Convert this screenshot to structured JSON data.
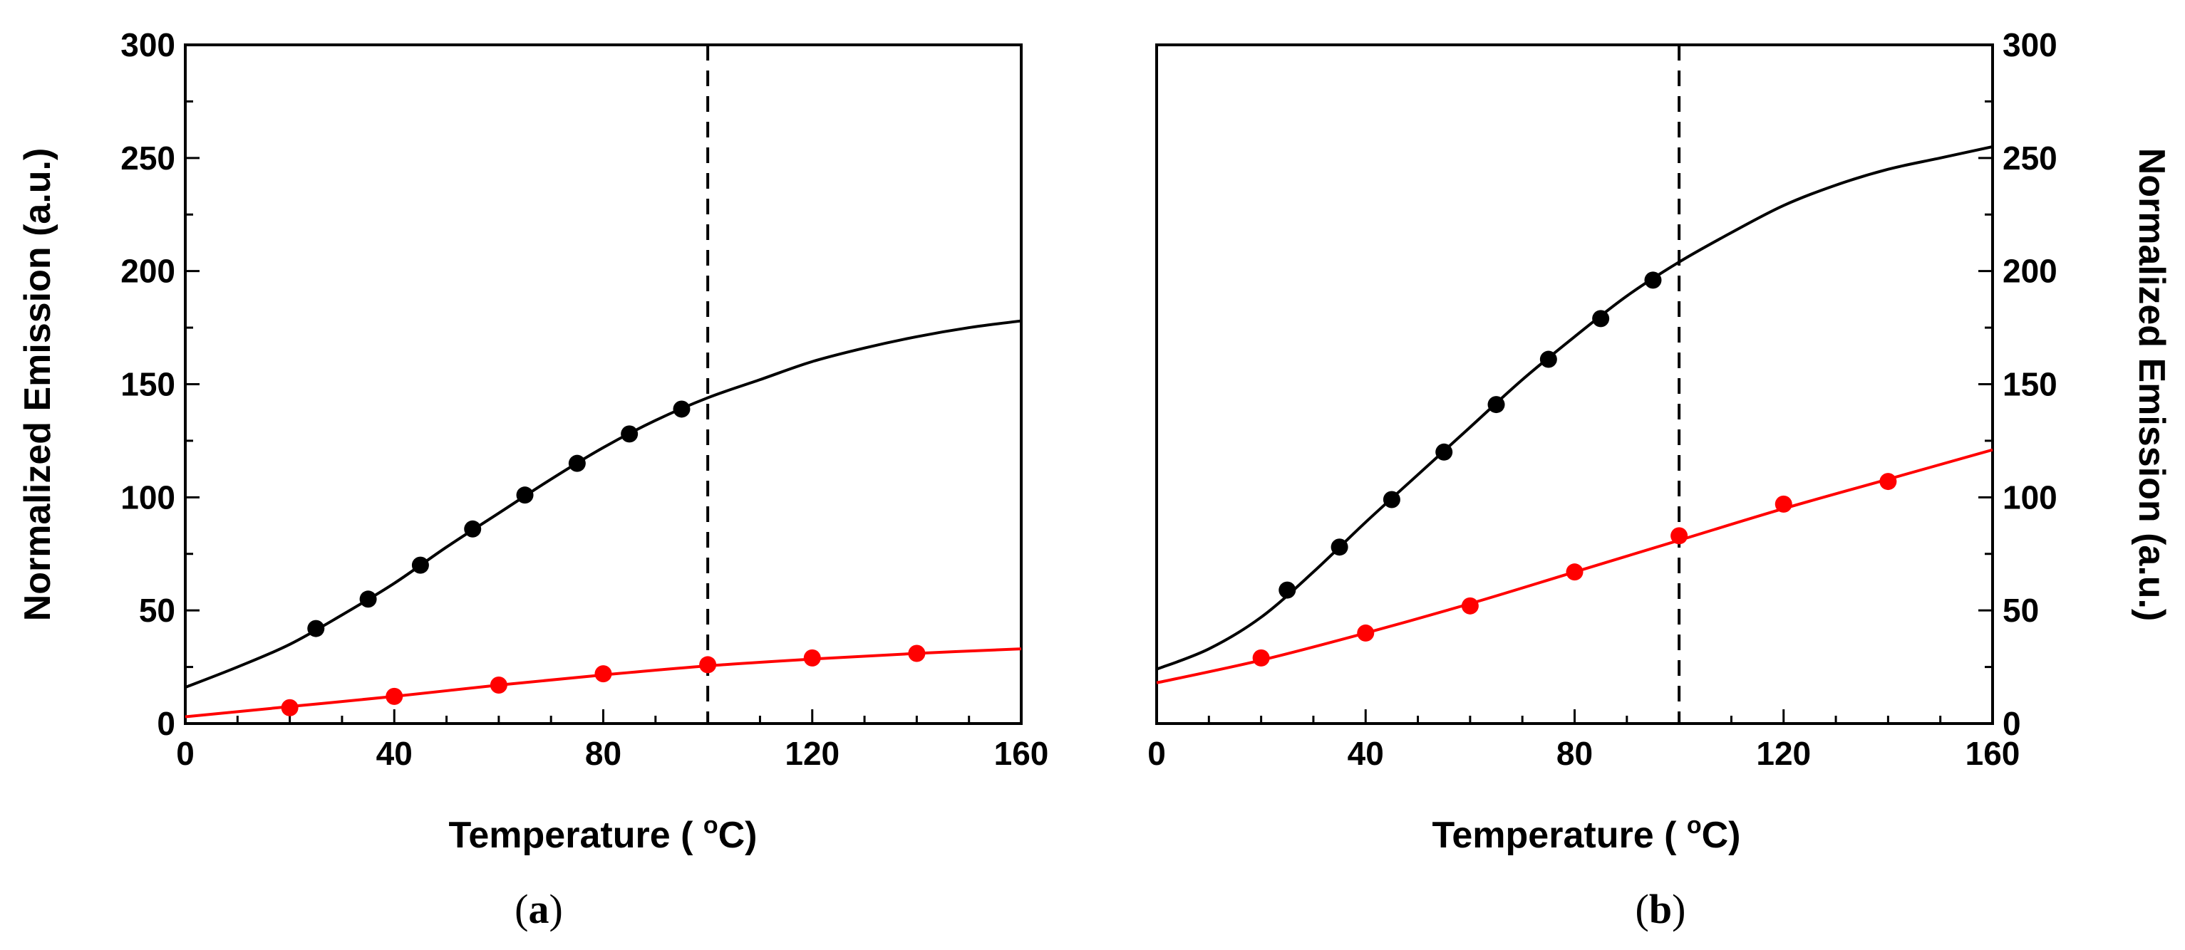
{
  "chart_data": [
    {
      "type": "line",
      "panel_label": "(a)",
      "panel_letter": "a",
      "xlabel": "Temperature (°C)",
      "ylabel": "Normalized Emission (a.u.)",
      "ylabel_side": "left",
      "xlim": [
        0,
        160
      ],
      "ylim": [
        0,
        300
      ],
      "xticks": [
        0,
        40,
        80,
        120,
        160
      ],
      "yticks": [
        0,
        50,
        100,
        150,
        200,
        250,
        300
      ],
      "vline_x": 100,
      "series": [
        {
          "name": "black",
          "color": "#000000",
          "points": {
            "x": [
              25,
              35,
              45,
              55,
              65,
              75,
              85,
              95
            ],
            "y": [
              42,
              55,
              70,
              86,
              101,
              115,
              128,
              139
            ]
          },
          "fit": {
            "x": [
              0,
              10,
              20,
              30,
              40,
              50,
              60,
              70,
              80,
              90,
              100,
              110,
              120,
              130,
              140,
              150,
              160
            ],
            "y": [
              16,
              25,
              35,
              48,
              62,
              78,
              93,
              108,
              122,
              134,
              144,
              152,
              160,
              166,
              171,
              175,
              178
            ]
          }
        },
        {
          "name": "red",
          "color": "#ff0000",
          "points": {
            "x": [
              20,
              40,
              60,
              80,
              100,
              120,
              140
            ],
            "y": [
              7,
              12,
              17,
              22,
              26,
              29,
              31
            ]
          },
          "fit": {
            "x": [
              0,
              20,
              40,
              60,
              80,
              100,
              120,
              140,
              160
            ],
            "y": [
              3,
              7.5,
              12,
              17,
              21.5,
              25.5,
              28.5,
              31,
              33
            ]
          }
        }
      ]
    },
    {
      "type": "line",
      "panel_label": "(b)",
      "panel_letter": "b",
      "xlabel": "Temperature (°C)",
      "ylabel": "Normalized Emission (a.u.)",
      "ylabel_side": "right",
      "xlim": [
        0,
        160
      ],
      "ylim": [
        0,
        300
      ],
      "xticks": [
        0,
        40,
        80,
        120,
        160
      ],
      "yticks": [
        0,
        50,
        100,
        150,
        200,
        250,
        300
      ],
      "vline_x": 100,
      "series": [
        {
          "name": "black",
          "color": "#000000",
          "points": {
            "x": [
              25,
              35,
              45,
              55,
              65,
              75,
              85,
              95
            ],
            "y": [
              59,
              78,
              99,
              120,
              141,
              161,
              179,
              196
            ]
          },
          "fit": {
            "x": [
              0,
              10,
              20,
              30,
              40,
              50,
              60,
              70,
              80,
              90,
              100,
              110,
              120,
              130,
              140,
              150,
              160
            ],
            "y": [
              24,
              33,
              47,
              67,
              89,
              110,
              131,
              152,
              171,
              189,
              204,
              217,
              229,
              238,
              245,
              250,
              255
            ]
          }
        },
        {
          "name": "red",
          "color": "#ff0000",
          "points": {
            "x": [
              20,
              40,
              60,
              80,
              100,
              120,
              140
            ],
            "y": [
              29,
              40,
              52,
              67,
              83,
              97,
              107
            ]
          },
          "fit": {
            "x": [
              0,
              20,
              40,
              60,
              80,
              100,
              120,
              140,
              160
            ],
            "y": [
              18,
              28,
              40,
              53,
              67,
              81,
              95,
              108,
              121
            ]
          }
        }
      ]
    }
  ]
}
